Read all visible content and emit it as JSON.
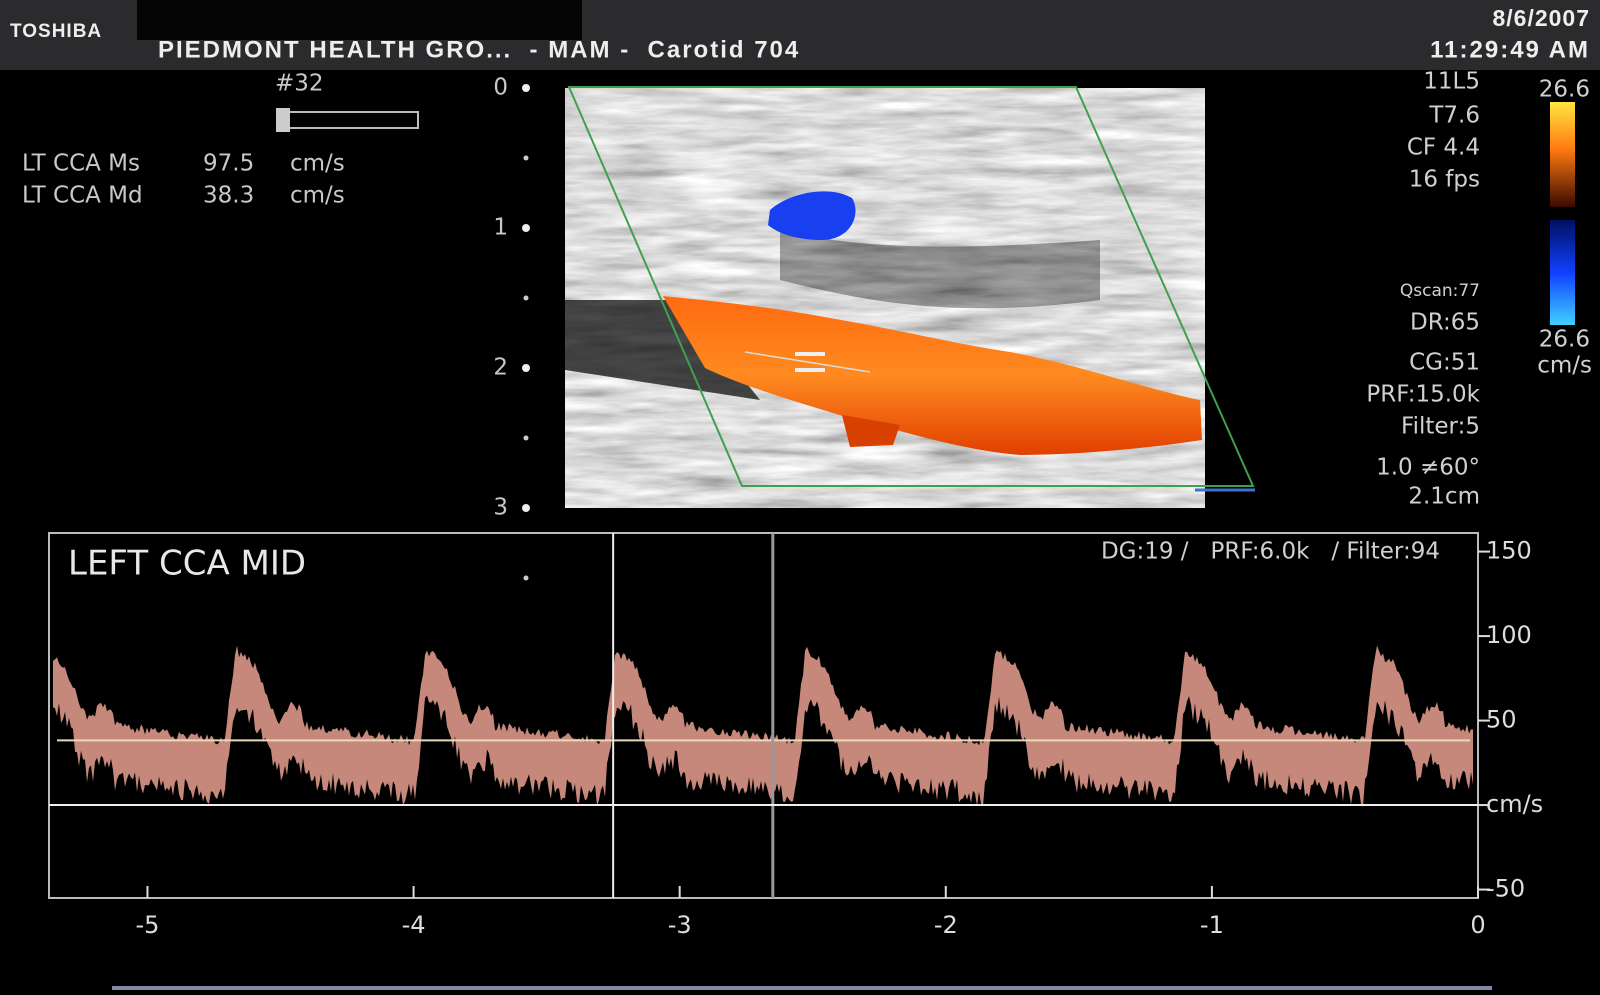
{
  "header": {
    "brand": "TOSHIBA",
    "title": "PIEDMONT HEALTH GRO...  - MAM -  Carotid 704",
    "date": "8/6/2007",
    "time": "11:29:49 AM"
  },
  "measurements": {
    "frame": "#32",
    "rows": [
      [
        "LT CCA Ms",
        "97.5",
        "cm/s"
      ],
      [
        "LT CCA Md",
        "38.3",
        "cm/s"
      ]
    ]
  },
  "depth_scale": {
    "labels": [
      "0",
      "1",
      "2",
      "3"
    ]
  },
  "settings": [
    "11L5",
    "T7.6",
    "CF 4.4",
    "16 fps",
    "Qscan:77",
    "DR:65",
    "CG:51",
    "PRF:15.0k",
    "Filter:5",
    "1.0 ≠60°",
    "2.1cm"
  ],
  "color_bar": {
    "top": "26.6",
    "bottom": "26.6",
    "unit": "cm/s"
  },
  "spectral": {
    "label": "LEFT CCA MID",
    "settings": "DG:19 /   PRF:6.0k   / Filter:94",
    "xlim": [
      -5.37,
      0
    ],
    "ylim": [
      -55,
      161
    ],
    "xticks": [
      -5,
      -4,
      -3,
      -2,
      -1,
      0
    ],
    "yticks": [
      150,
      100,
      50,
      {
        "value": 0,
        "label": "cm/s"
      },
      -50
    ]
  }
}
